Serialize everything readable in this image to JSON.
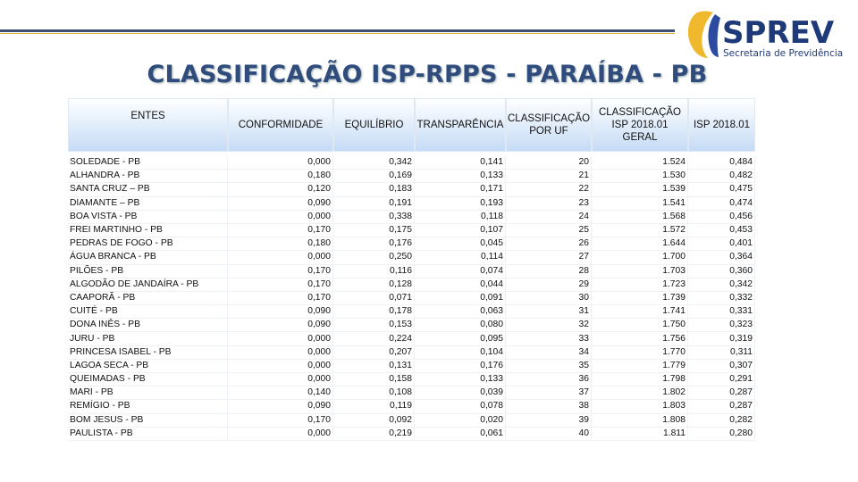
{
  "logo": {
    "name": "SPREV",
    "subtitle": "Secretaria de Previdência"
  },
  "title": "CLASSIFICAÇÃO ISP-RPPS - PARAÍBA - PB",
  "table": {
    "headers": [
      "ENTES",
      "CONFORMIDADE",
      "EQUILÍBRIO",
      "TRANSPARÊNCIA",
      "CLASSIFICAÇÃO POR UF",
      "CLASSIFICAÇÃO ISP 2018.01 GERAL",
      "ISP 2018.01"
    ],
    "rows": [
      [
        "SOLEDADE - PB",
        "0,000",
        "0,342",
        "0,141",
        "20",
        "1.524",
        "0,484"
      ],
      [
        "ALHANDRA - PB",
        "0,180",
        "0,169",
        "0,133",
        "21",
        "1.530",
        "0,482"
      ],
      [
        "SANTA CRUZ – PB",
        "0,120",
        "0,183",
        "0,171",
        "22",
        "1.539",
        "0,475"
      ],
      [
        "DIAMANTE – PB",
        "0,090",
        "0,191",
        "0,193",
        "23",
        "1.541",
        "0,474"
      ],
      [
        "BOA VISTA - PB",
        "0,000",
        "0,338",
        "0,118",
        "24",
        "1.568",
        "0,456"
      ],
      [
        "FREI MARTINHO - PB",
        "0,170",
        "0,175",
        "0,107",
        "25",
        "1.572",
        "0,453"
      ],
      [
        "PEDRAS DE FOGO - PB",
        "0,180",
        "0,176",
        "0,045",
        "26",
        "1.644",
        "0,401"
      ],
      [
        "ÁGUA BRANCA - PB",
        "0,000",
        "0,250",
        "0,114",
        "27",
        "1.700",
        "0,364"
      ],
      [
        "PILÕES - PB",
        "0,170",
        "0,116",
        "0,074",
        "28",
        "1.703",
        "0,360"
      ],
      [
        "ALGODÃO DE JANDAÍRA - PB",
        "0,170",
        "0,128",
        "0,044",
        "29",
        "1.723",
        "0,342"
      ],
      [
        "CAAPORÃ - PB",
        "0,170",
        "0,071",
        "0,091",
        "30",
        "1.739",
        "0,332"
      ],
      [
        "CUITÉ - PB",
        "0,090",
        "0,178",
        "0,063",
        "31",
        "1.741",
        "0,331"
      ],
      [
        "DONA INÊS - PB",
        "0,090",
        "0,153",
        "0,080",
        "32",
        "1.750",
        "0,323"
      ],
      [
        "JURU - PB",
        "0,000",
        "0,224",
        "0,095",
        "33",
        "1.756",
        "0,319"
      ],
      [
        "PRINCESA ISABEL - PB",
        "0,000",
        "0,207",
        "0,104",
        "34",
        "1.770",
        "0,311"
      ],
      [
        "LAGOA SECA - PB",
        "0,000",
        "0,131",
        "0,176",
        "35",
        "1.779",
        "0,307"
      ],
      [
        "QUEIMADAS - PB",
        "0,000",
        "0,158",
        "0,133",
        "36",
        "1.798",
        "0,291"
      ],
      [
        "MARI - PB",
        "0,140",
        "0,108",
        "0,039",
        "37",
        "1.802",
        "0,287"
      ],
      [
        "REMÍGIO - PB",
        "0,090",
        "0,119",
        "0,078",
        "38",
        "1.803",
        "0,287"
      ],
      [
        "BOM JESUS - PB",
        "0,170",
        "0,092",
        "0,020",
        "39",
        "1.808",
        "0,282"
      ],
      [
        "PAULISTA - PB",
        "0,000",
        "0,219",
        "0,061",
        "40",
        "1.811",
        "0,280"
      ]
    ]
  }
}
